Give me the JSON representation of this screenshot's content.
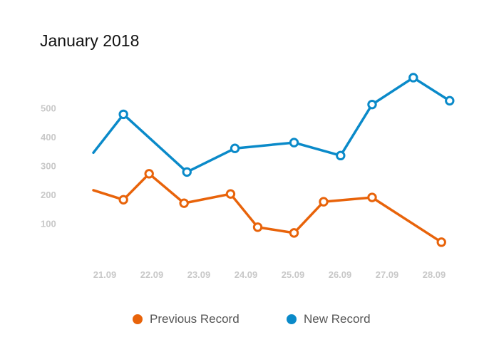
{
  "chart_data": {
    "type": "line",
    "title": "January 2018",
    "xlabel": "",
    "ylabel": "",
    "x_tick_labels": [
      "21.09",
      "22.09",
      "23.09",
      "24.09",
      "25.09",
      "26.09",
      "27.09",
      "28.09"
    ],
    "y_ticks": [
      100,
      200,
      300,
      400,
      500
    ],
    "ylim": [
      0,
      650
    ],
    "grid": false,
    "legend_position": "bottom-center",
    "series": [
      {
        "name": "Previous Record",
        "color": "#e8630a",
        "points": [
          {
            "x": 0.0,
            "y": 215,
            "marker": false
          },
          {
            "x": 0.62,
            "y": 182,
            "marker": true
          },
          {
            "x": 1.15,
            "y": 272,
            "marker": true
          },
          {
            "x": 1.87,
            "y": 170,
            "marker": true
          },
          {
            "x": 2.83,
            "y": 202,
            "marker": true
          },
          {
            "x": 3.39,
            "y": 87,
            "marker": true
          },
          {
            "x": 4.14,
            "y": 67,
            "marker": true
          },
          {
            "x": 4.75,
            "y": 175,
            "marker": true
          },
          {
            "x": 5.75,
            "y": 190,
            "marker": true
          },
          {
            "x": 7.18,
            "y": 35,
            "marker": true
          }
        ]
      },
      {
        "name": "New Record",
        "color": "#0a8ac9",
        "points": [
          {
            "x": 0.0,
            "y": 345,
            "marker": false
          },
          {
            "x": 0.62,
            "y": 478,
            "marker": true
          },
          {
            "x": 1.93,
            "y": 278,
            "marker": true
          },
          {
            "x": 2.92,
            "y": 360,
            "marker": true
          },
          {
            "x": 4.14,
            "y": 380,
            "marker": true
          },
          {
            "x": 5.1,
            "y": 335,
            "marker": true
          },
          {
            "x": 5.75,
            "y": 512,
            "marker": true
          },
          {
            "x": 6.6,
            "y": 605,
            "marker": true
          },
          {
            "x": 7.35,
            "y": 525,
            "marker": true
          }
        ]
      }
    ]
  }
}
